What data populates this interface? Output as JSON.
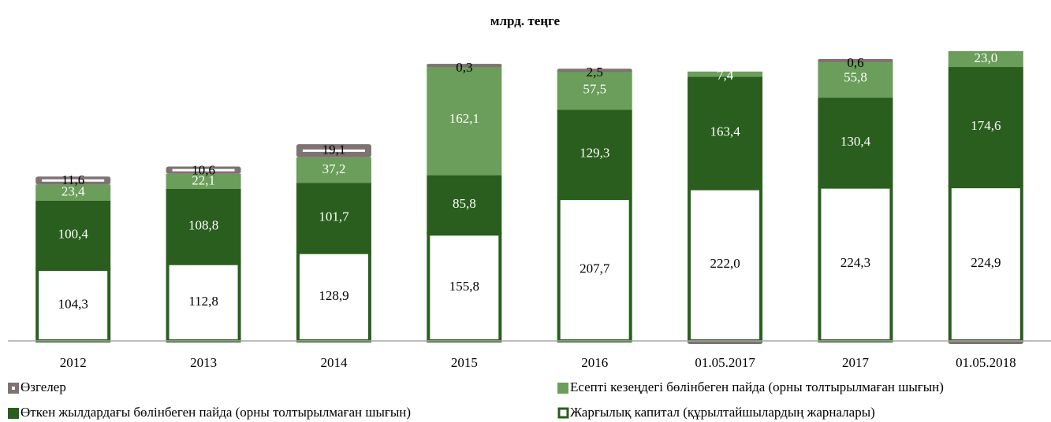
{
  "chart_data": {
    "type": "stacked_bar",
    "title": "млрд. теңге",
    "categories": [
      "2012",
      "2013",
      "2014",
      "2015",
      "2016",
      "01.05.2017",
      "2017",
      "01.05.2018"
    ],
    "series": [
      {
        "name": "Жарғылық капитал (құрылтайшылардың жарналары)",
        "color": "#ffffff",
        "values": [
          104.3,
          112.8,
          128.9,
          155.8,
          207.7,
          222.0,
          224.3,
          224.9
        ],
        "value_labels": [
          "104,3",
          "112,8",
          "128,9",
          "155,8",
          "207,7",
          "222,0",
          "224,3",
          "224,9"
        ]
      },
      {
        "name": "Өткен жылдардағы бөлінбеген пайда (орны толтырылмаған шығын)",
        "color": "#2a5e1e",
        "values": [
          100.4,
          108.8,
          101.7,
          85.8,
          129.3,
          163.4,
          130.4,
          174.6
        ],
        "value_labels": [
          "100,4",
          "108,8",
          "101,7",
          "85,8",
          "129,3",
          "163,4",
          "130,4",
          "174,6"
        ]
      },
      {
        "name": "Есепті кезеңдегі бөлінбеген пайда (орны толтырылмаған шығын)",
        "color": "#6a9e5a",
        "values": [
          23.4,
          22.1,
          37.2,
          162.1,
          57.5,
          7.4,
          55.8,
          23.0
        ],
        "value_labels": [
          "23,4",
          "22,1",
          "37,2",
          "162,1",
          "57,5",
          "7,4",
          "55,8",
          "23,0"
        ]
      },
      {
        "name": "Өзгелер",
        "color": "#7f7272",
        "values": [
          11.6,
          10.6,
          19.1,
          0.3,
          2.5,
          -4,
          0.6,
          -4
        ],
        "value_labels": [
          "11,6",
          "10,6",
          "19,1",
          "0,3",
          "2,5",
          null,
          "0,6",
          null
        ]
      }
    ]
  }
}
